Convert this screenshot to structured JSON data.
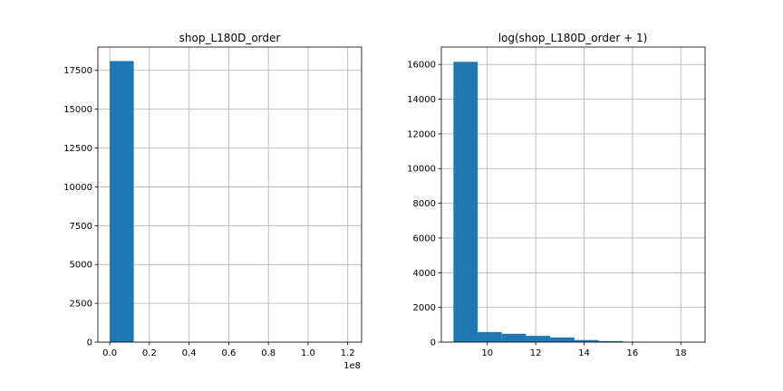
{
  "chart_data": [
    {
      "type": "bar",
      "title": "shop_L180D_order",
      "xlabel": "",
      "ylabel": "",
      "x_offset_label": "1e8",
      "xlim": [
        -0.06,
        1.27
      ],
      "ylim": [
        0,
        19000
      ],
      "x_ticks": [
        0.0,
        0.2,
        0.4,
        0.6,
        0.8,
        1.0,
        1.2
      ],
      "x_tick_labels": [
        "0.0",
        "0.2",
        "0.4",
        "0.6",
        "0.8",
        "1.0",
        "1.2"
      ],
      "y_ticks": [
        0,
        2500,
        5000,
        7500,
        10000,
        12500,
        15000,
        17500
      ],
      "y_tick_labels": [
        "0",
        "2500",
        "5000",
        "7500",
        "10000",
        "12500",
        "15000",
        "17500"
      ],
      "bin_edges": [
        0.0,
        0.121,
        0.242,
        0.363,
        0.484,
        0.605,
        0.726,
        0.847,
        0.968,
        1.089,
        1.21
      ],
      "values": [
        18100,
        3,
        1,
        0,
        0,
        0,
        0,
        0,
        0,
        1
      ],
      "grid": true,
      "color": "#1f77b4"
    },
    {
      "type": "bar",
      "title": "log(shop_L180D_order + 1)",
      "xlabel": "",
      "ylabel": "",
      "xlim": [
        8.1,
        19.0
      ],
      "ylim": [
        0,
        17000
      ],
      "x_ticks": [
        10,
        12,
        14,
        16,
        18
      ],
      "x_tick_labels": [
        "10",
        "12",
        "14",
        "16",
        "18"
      ],
      "y_ticks": [
        0,
        2000,
        4000,
        6000,
        8000,
        10000,
        12000,
        14000,
        16000
      ],
      "y_tick_labels": [
        "0",
        "2000",
        "4000",
        "6000",
        "8000",
        "10000",
        "12000",
        "14000",
        "16000"
      ],
      "bin_edges": [
        8.6,
        9.6,
        10.6,
        11.6,
        12.6,
        13.6,
        14.6,
        15.6,
        16.6,
        17.6,
        18.6
      ],
      "values": [
        16150,
        580,
        480,
        360,
        270,
        120,
        60,
        15,
        5,
        2
      ],
      "grid": true,
      "color": "#1f77b4"
    }
  ]
}
